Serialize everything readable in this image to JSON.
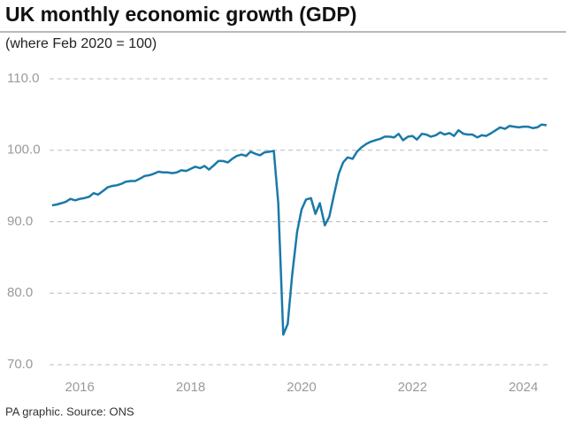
{
  "chart_data": {
    "type": "line",
    "title": "UK monthly economic growth (GDP)",
    "subtitle": "(where Feb 2020 = 100)",
    "source": "PA graphic. Source: ONS",
    "x": [
      2015.5,
      2015.58,
      2015.67,
      2015.75,
      2015.83,
      2015.92,
      2016,
      2016.08,
      2016.17,
      2016.25,
      2016.33,
      2016.42,
      2016.5,
      2016.58,
      2016.67,
      2016.75,
      2016.83,
      2016.92,
      2017,
      2017.08,
      2017.17,
      2017.25,
      2017.33,
      2017.42,
      2017.5,
      2017.58,
      2017.67,
      2017.75,
      2017.83,
      2017.92,
      2018,
      2018.08,
      2018.17,
      2018.25,
      2018.33,
      2018.42,
      2018.5,
      2018.58,
      2018.67,
      2018.75,
      2018.83,
      2018.92,
      2019,
      2019.08,
      2019.17,
      2019.25,
      2019.33,
      2019.42,
      2019.5,
      2019.58,
      2019.67,
      2019.75,
      2019.83,
      2019.92,
      2020,
      2020.08,
      2020.17,
      2020.25,
      2020.33,
      2020.42,
      2020.5,
      2020.58,
      2020.67,
      2020.75,
      2020.83,
      2020.92,
      2021,
      2021.08,
      2021.17,
      2021.25,
      2021.33,
      2021.42,
      2021.5,
      2021.58,
      2021.67,
      2021.75,
      2021.83,
      2021.92,
      2022,
      2022.08,
      2022.17,
      2022.25,
      2022.33,
      2022.42,
      2022.5,
      2022.58,
      2022.67,
      2022.75,
      2022.83,
      2022.92,
      2023,
      2023.08,
      2023.17,
      2023.25,
      2023.33,
      2023.42,
      2023.5,
      2023.58,
      2023.67,
      2023.75,
      2023.83,
      2023.92,
      2024,
      2024.08,
      2024.17,
      2024.25,
      2024.33,
      2024.42
    ],
    "series": [
      {
        "name": "GDP",
        "color": "#1a7aa8",
        "values": [
          92.3,
          92.4,
          92.6,
          92.8,
          93.2,
          93.0,
          93.2,
          93.3,
          93.5,
          94.0,
          93.8,
          94.3,
          94.8,
          95.0,
          95.1,
          95.3,
          95.6,
          95.7,
          95.7,
          96.0,
          96.4,
          96.5,
          96.7,
          97.0,
          96.9,
          96.9,
          96.8,
          96.9,
          97.2,
          97.1,
          97.4,
          97.7,
          97.5,
          97.8,
          97.3,
          97.9,
          98.5,
          98.5,
          98.3,
          98.8,
          99.2,
          99.4,
          99.2,
          99.8,
          99.5,
          99.3,
          99.7,
          99.8,
          99.9,
          92.6,
          74.2,
          75.7,
          82.5,
          88.6,
          91.7,
          93.1,
          93.3,
          91.1,
          92.6,
          89.5,
          90.7,
          93.6,
          96.7,
          98.3,
          99.0,
          98.8,
          99.8,
          100.4,
          100.9,
          101.2,
          101.4,
          101.6,
          101.9,
          101.9,
          101.8,
          102.3,
          101.4,
          101.9,
          102.0,
          101.5,
          102.3,
          102.2,
          101.9,
          102.1,
          102.5,
          102.2,
          102.4,
          102.0,
          102.8,
          102.3,
          102.2,
          102.2,
          101.8,
          102.1,
          102.0,
          102.4,
          102.8,
          103.2,
          103.0,
          103.4,
          103.3,
          103.2,
          103.3,
          103.3,
          103.1,
          103.2,
          103.6,
          103.5
        ]
      }
    ],
    "xlim": [
      2015.04,
      2024.45
    ],
    "xticks": [
      2016,
      2018,
      2020,
      2022,
      2024
    ],
    "ylim": [
      70,
      110
    ],
    "yticks": [
      {
        "value": 70,
        "label": "70.0"
      },
      {
        "value": 80,
        "label": "80.0"
      },
      {
        "value": 90,
        "label": "90.0"
      },
      {
        "value": 100,
        "label": "100.0"
      },
      {
        "value": 110,
        "label": "110.0"
      }
    ],
    "grid": true
  }
}
